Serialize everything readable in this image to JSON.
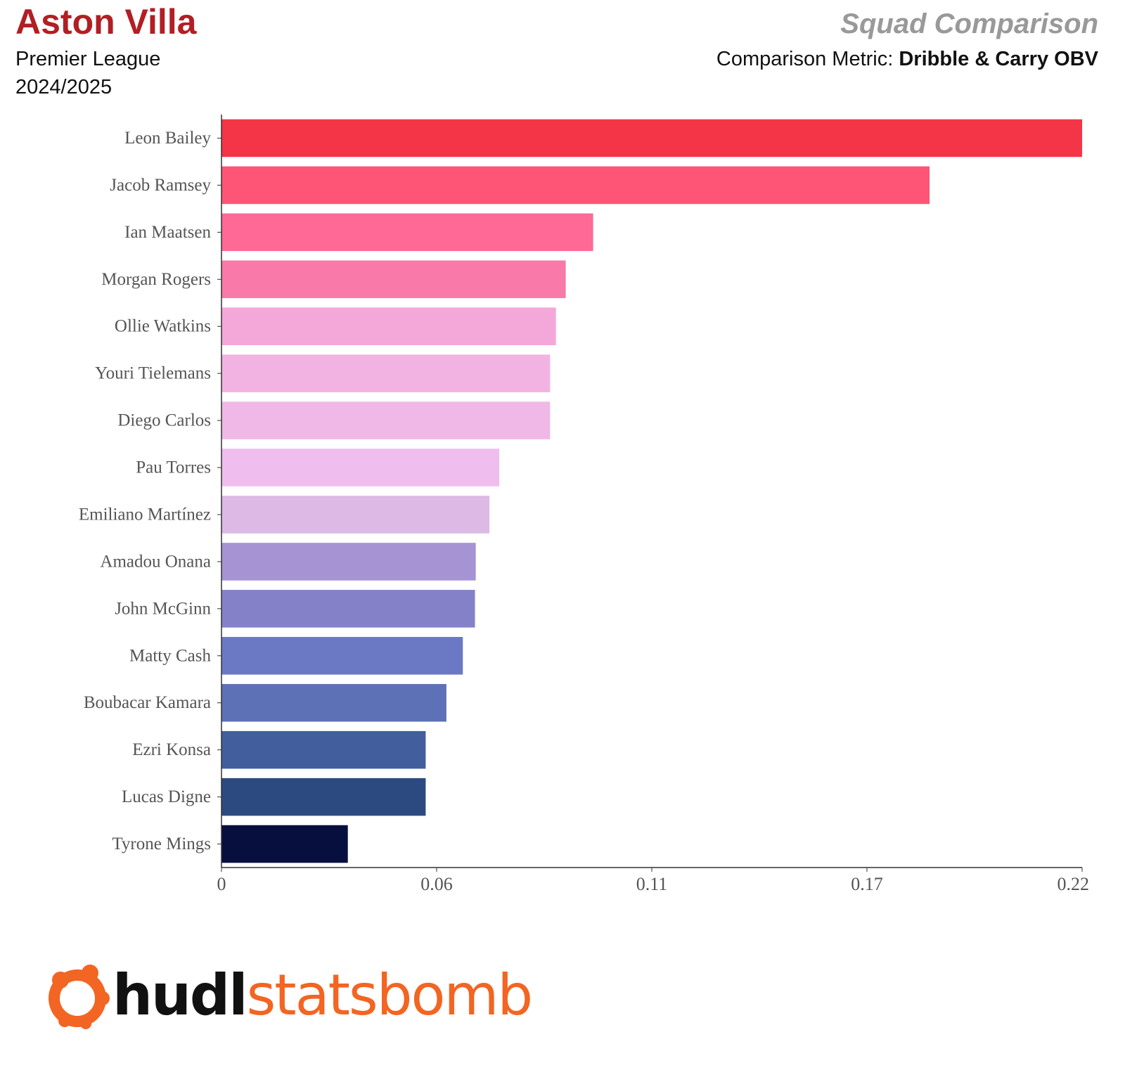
{
  "header": {
    "team": "Aston Villa",
    "competition": "Premier League",
    "season": "2024/2025",
    "report_title": "Squad Comparison",
    "metric_label": "Comparison Metric:",
    "metric_value": "Dribble & Carry OBV"
  },
  "logo": {
    "brand_part1": "hudl",
    "brand_part2": "statsbomb",
    "icon": "statsbomb-logo-icon",
    "brand_color": "#f26522"
  },
  "colors": {
    "title": "#b11f24",
    "subtitle": "#999999"
  },
  "chart_data": {
    "type": "bar",
    "orientation": "horizontal",
    "categories": [
      "Leon Bailey",
      "Jacob Ramsey",
      "Ian Maatsen",
      "Morgan Rogers",
      "Ollie Watkins",
      "Youri Tielemans",
      "Diego Carlos",
      "Pau Torres",
      "Emiliano Martínez",
      "Amadou Onana",
      "John McGinn",
      "Matty Cash",
      "Boubacar Kamara",
      "Ezri Konsa",
      "Lucas Digne",
      "Tyrone Mings"
    ],
    "values": [
      0.22,
      0.181,
      0.095,
      0.088,
      0.0855,
      0.084,
      0.084,
      0.071,
      0.0685,
      0.065,
      0.0648,
      0.0617,
      0.0575,
      0.0522,
      0.0522,
      0.0323
    ],
    "colors": [
      "#f43447",
      "#fe5475",
      "#fe6996",
      "#f979a8",
      "#f4a7d9",
      "#f2b3e2",
      "#f0b8e6",
      "#efbdee",
      "#ddb9e6",
      "#a593d3",
      "#8581c8",
      "#6b79c4",
      "#5d71b6",
      "#425e9c",
      "#2c4a80",
      "#070f3f"
    ],
    "xlim": [
      0,
      0.22
    ],
    "xticks": [
      "0",
      "0.06",
      "0.11",
      "0.17",
      "0.22"
    ],
    "xlabel": "",
    "ylabel": "",
    "grid": false,
    "legend": "none"
  }
}
